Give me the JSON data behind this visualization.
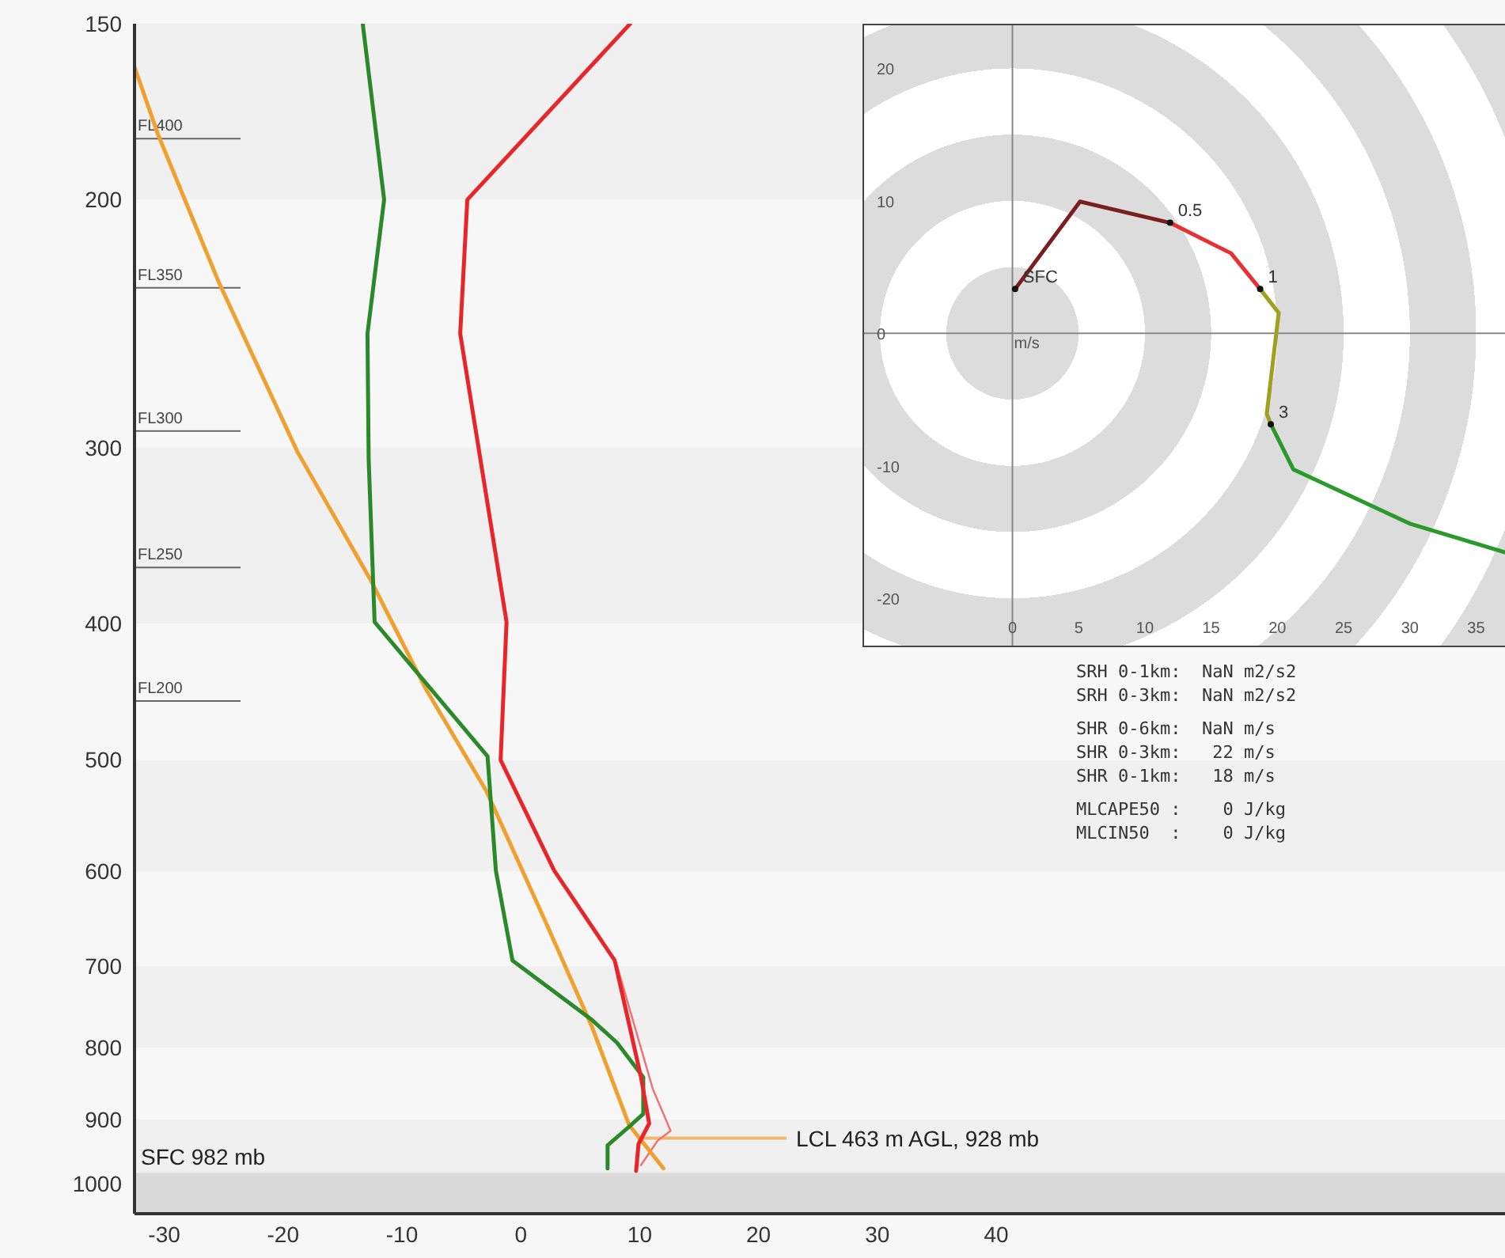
{
  "chart_data": [
    {
      "type": "line",
      "xlim": [
        -32.5,
        82.8
      ],
      "xticks": [
        -30,
        -20,
        -10,
        0,
        10,
        20,
        30,
        40
      ],
      "ylim": [
        1050,
        150
      ],
      "yticks": [
        150,
        200,
        300,
        400,
        500,
        600,
        700,
        800,
        900,
        1000
      ],
      "log": "y",
      "legend": false,
      "series": [
        {
          "color": "#f07070",
          "x": [
            8.1,
            11.1,
            12.6,
            11.5,
            10.1
          ],
          "values": [
            700,
            856,
            917,
            932,
            970
          ]
        },
        {
          "color": "#f0a030",
          "x": [
            -32.5,
            -30.5,
            -25.4,
            -18.8,
            -12.6,
            -8.0,
            -2.9,
            2.1,
            6.0,
            9.1,
            12.0
          ],
          "values": [
            161,
            180,
            229,
            302,
            373,
            445,
            526,
            652,
            774,
            908,
            975
          ]
        },
        {
          "color": "#2a8a2a",
          "x": [
            -13.3,
            -11.5,
            -12.9,
            -12.8,
            -12.3,
            -2.8,
            -2.1,
            -0.7,
            6.0,
            8.1,
            10.3,
            10.3,
            9.1,
            7.3,
            7.3
          ],
          "values": [
            150,
            200,
            249,
            306,
            399,
            497,
            599,
            694,
            765,
            794,
            840,
            892,
            911,
            939,
            975
          ]
        },
        {
          "color": "#e8262a",
          "x": [
            9.2,
            -4.5,
            -5.1,
            -1.2,
            -1.7,
            2.8,
            7.9,
            10.1,
            10.8,
            9.9,
            9.7
          ],
          "values": [
            150,
            200,
            249,
            399,
            500,
            599,
            694,
            839,
            906,
            937,
            979
          ]
        }
      ],
      "bands": [
        {
          "axis": "y",
          "from": 150,
          "to": 200,
          "color": "#f0f0f0"
        },
        {
          "axis": "y",
          "from": 300,
          "to": 400,
          "color": "#f0f0f0"
        },
        {
          "axis": "y",
          "from": 500,
          "to": 600,
          "color": "#f0f0f0"
        },
        {
          "axis": "y",
          "from": 700,
          "to": 800,
          "color": "#f0f0f0"
        },
        {
          "axis": "y",
          "from": 900,
          "to": 982,
          "color": "#f0f0f0"
        },
        {
          "axis": "y",
          "from": 982,
          "to": 1050,
          "color": "#dadada",
          "label": "SFC 982 mb"
        }
      ],
      "ref_lines": [
        {
          "axis": "y",
          "value": 181,
          "label": "FL400",
          "color": "#666666"
        },
        {
          "axis": "y",
          "value": 231,
          "label": "FL350",
          "color": "#666666"
        },
        {
          "axis": "y",
          "value": 292,
          "label": "FL300",
          "color": "#666666"
        },
        {
          "axis": "y",
          "value": 365,
          "label": "FL250",
          "color": "#666666"
        },
        {
          "axis": "y",
          "value": 454,
          "label": "FL200",
          "color": "#666666"
        }
      ],
      "annotations": [
        {
          "text": "LCL 463 m AGL, 928 mb",
          "x": 10.1,
          "y": 928
        },
        "SRH 0-1km:  NaN m2/s2",
        "SRH 0-3km:  NaN m2/s2",
        "SHR 0-6km:  NaN m/s",
        "SHR 0-3km:   22 m/s",
        "SHR 0-1km:   18 m/s",
        "MLCAPE50 :    0 J/kg",
        "MLCIN50  :    0 J/kg"
      ]
    },
    {
      "type": "line",
      "xlabel": "m/s",
      "xlim": [
        -11.2,
        37.3
      ],
      "xticks": [
        0,
        5,
        10,
        15,
        20,
        25,
        30,
        35
      ],
      "ylim": [
        -23.5,
        23.3
      ],
      "yticks": [
        -20,
        -10,
        0,
        10,
        20
      ],
      "grid": true,
      "legend": false,
      "series": [
        {
          "color": "#7a1f1f",
          "x": [
            0.2,
            5.1,
            11.9
          ],
          "values": [
            3.4,
            10.0,
            8.4
          ]
        },
        {
          "color": "#e83030",
          "x": [
            11.9,
            16.5,
            18.7
          ],
          "values": [
            8.4,
            6.1,
            3.4
          ]
        },
        {
          "color": "#a0a020",
          "x": [
            18.7,
            20.1,
            19.2,
            19.5
          ],
          "values": [
            3.4,
            1.6,
            -6.0,
            -6.8
          ]
        },
        {
          "color": "#2a9a2a",
          "x": [
            19.5,
            21.2,
            30.0,
            37.3
          ],
          "values": [
            -6.8,
            -10.2,
            -14.3,
            -16.5
          ]
        }
      ],
      "annotations": [
        {
          "text": "SFC",
          "x": 0.2,
          "y": 3.4
        },
        {
          "text": "0.5",
          "x": 11.9,
          "y": 8.4
        },
        {
          "text": "1",
          "x": 18.7,
          "y": 3.4
        },
        {
          "text": "3",
          "x": 19.5,
          "y": -6.8
        }
      ]
    }
  ]
}
